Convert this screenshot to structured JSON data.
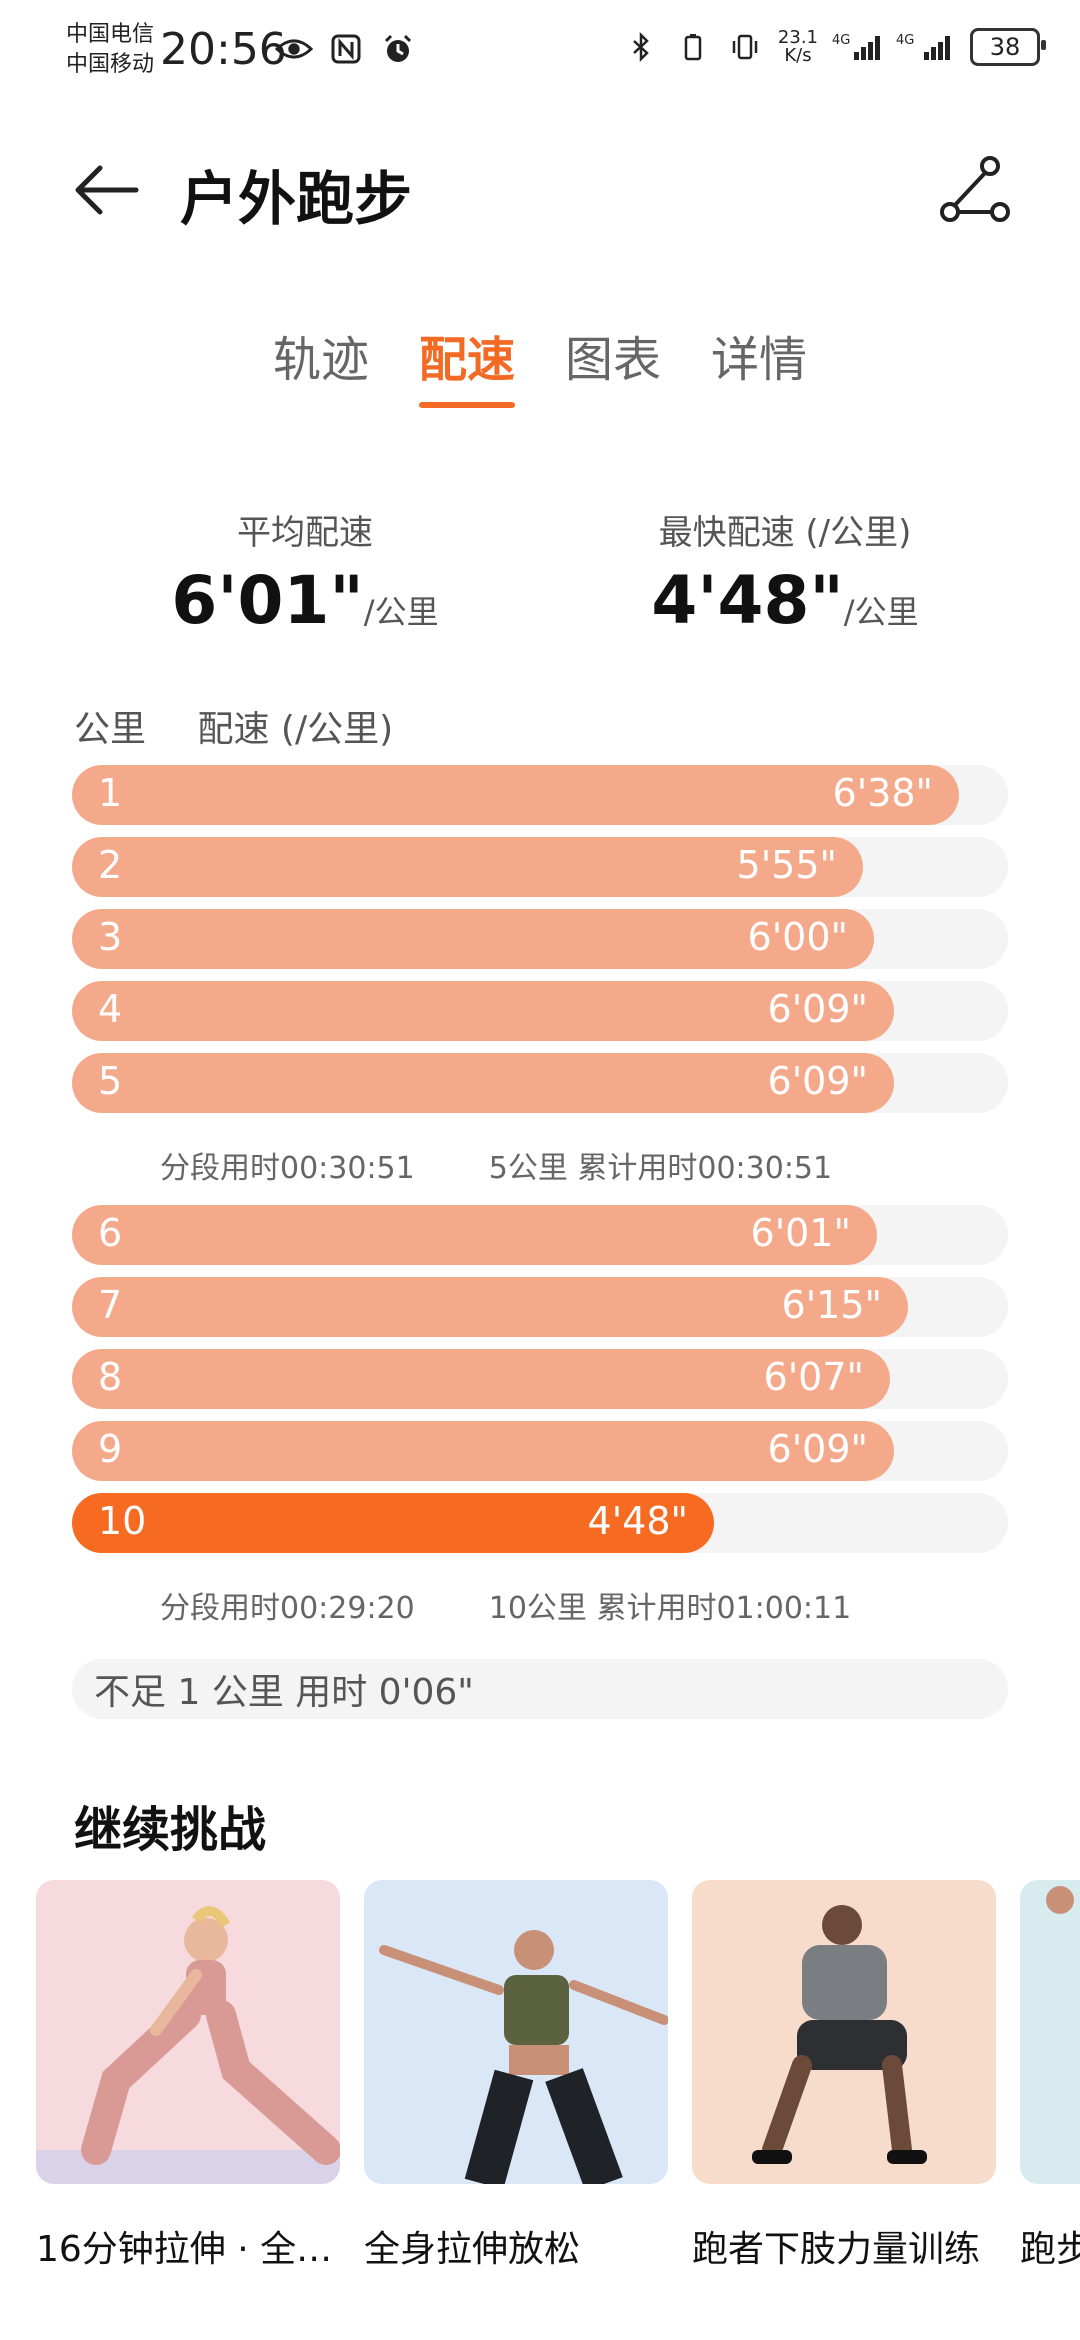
{
  "status": {
    "carrier1": "中国电信",
    "carrier2": "中国移动",
    "time": "20:56",
    "speed": "23.1",
    "speed_unit": "K/s",
    "net1": "4G",
    "net2": "4G",
    "battery": "38"
  },
  "header": {
    "title": "户外跑步"
  },
  "tabs": [
    "轨迹",
    "配速",
    "图表",
    "详情"
  ],
  "active_tab_index": 1,
  "stats": {
    "avg_label": "平均配速",
    "avg_value": "6'01\"",
    "avg_unit": "/公里",
    "fast_label": "最快配速 (/公里)",
    "fast_value": "4'48\"",
    "fast_unit": "/公里"
  },
  "table": {
    "col1": "公里",
    "col2": "配速 (/公里)"
  },
  "splits": [
    {
      "km": "1",
      "pace": "6'38\"",
      "sec": 398
    },
    {
      "km": "2",
      "pace": "5'55\"",
      "sec": 355
    },
    {
      "km": "3",
      "pace": "6'00\"",
      "sec": 360
    },
    {
      "km": "4",
      "pace": "6'09\"",
      "sec": 369
    },
    {
      "km": "5",
      "pace": "6'09\"",
      "sec": 369
    },
    {
      "km": "6",
      "pace": "6'01\"",
      "sec": 361
    },
    {
      "km": "7",
      "pace": "6'15\"",
      "sec": 375
    },
    {
      "km": "8",
      "pace": "6'07\"",
      "sec": 367
    },
    {
      "km": "9",
      "pace": "6'09\"",
      "sec": 369
    },
    {
      "km": "10",
      "pace": "4'48\"",
      "sec": 288
    }
  ],
  "segments": [
    {
      "seg_time": "分段用时00:30:51",
      "cum": "5公里 累计用时00:30:51"
    },
    {
      "seg_time": "分段用时00:29:20",
      "cum": "10公里 累计用时01:00:11"
    }
  ],
  "under_km": "不足 1 公里 用时 0'06\"",
  "challenge": {
    "title": "继续挑战",
    "cards": [
      {
        "caption": "16分钟拉伸 · 全…",
        "bg": "#f6dadd"
      },
      {
        "caption": "全身拉伸放松",
        "bg": "#d9e7f7"
      },
      {
        "caption": "跑者下肢力量训练",
        "bg": "#f8dccb"
      },
      {
        "caption": "跑步",
        "bg": "#d8ecef"
      }
    ]
  },
  "colors": {
    "accent": "#f26a24",
    "bar": "#f5a98b",
    "bar_fast": "#f66a22",
    "track": "#f4f4f4"
  }
}
